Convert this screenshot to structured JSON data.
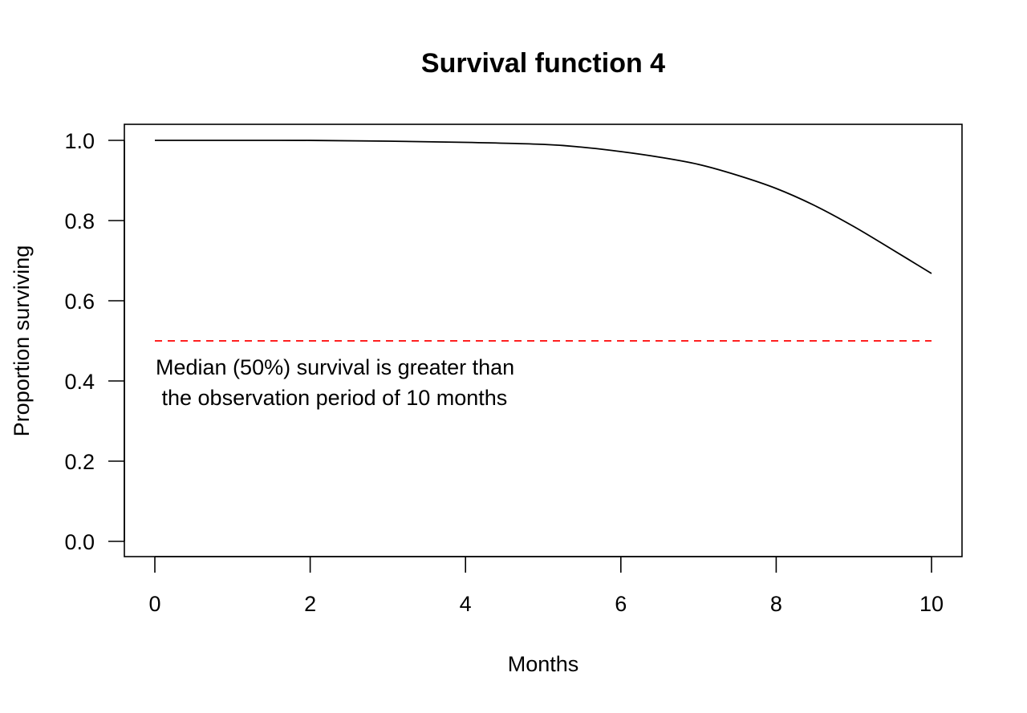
{
  "chart_data": {
    "type": "line",
    "title": "Survival function 4",
    "xlabel": "Months",
    "ylabel": "Proportion surviving",
    "xlim": [
      0,
      10
    ],
    "ylim": [
      0,
      1
    ],
    "x_ticks": [
      0,
      2,
      4,
      6,
      8,
      10
    ],
    "y_ticks": [
      0.0,
      0.2,
      0.4,
      0.6,
      0.8,
      1.0
    ],
    "x_tick_labels": [
      "0",
      "2",
      "4",
      "6",
      "8",
      "10"
    ],
    "y_tick_labels": [
      "0.0",
      "0.2",
      "0.4",
      "0.6",
      "0.8",
      "1.0"
    ],
    "grid": false,
    "series": [
      {
        "type": "line",
        "color": "#000000",
        "x": [
          0,
          1,
          2,
          3,
          4,
          5,
          5.5,
          6,
          6.5,
          7,
          7.5,
          8,
          8.5,
          9,
          9.5,
          10
        ],
        "y": [
          1.0,
          1.0,
          0.9999,
          0.998,
          0.995,
          0.99,
          0.983,
          0.972,
          0.958,
          0.94,
          0.913,
          0.88,
          0.837,
          0.785,
          0.727,
          0.668
        ]
      }
    ],
    "reference_lines": [
      {
        "orientation": "horizontal",
        "y": 0.5,
        "style": "dashed",
        "color": "#ff0000",
        "x_start": 0,
        "x_end": 10
      }
    ],
    "annotations": [
      {
        "lines": [
          "Median (50%) survival is greater than",
          " the observation period of 10 months"
        ]
      }
    ]
  }
}
